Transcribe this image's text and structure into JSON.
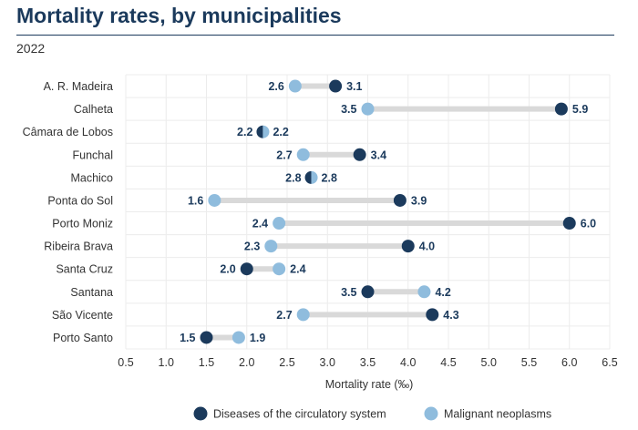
{
  "header": {
    "title": "Mortality rates, by municipalities",
    "subtitle": "2022"
  },
  "chart_data": {
    "type": "dumbbell",
    "title": "Mortality rates, by municipalities",
    "subtitle": "2022",
    "xlabel": "Mortality rate (‰)",
    "ylabel": "",
    "xlim": [
      0.5,
      6.5
    ],
    "xticks": [
      "0.5",
      "1.0",
      "1.5",
      "2.0",
      "2.5",
      "3.0",
      "3.5",
      "4.0",
      "4.5",
      "5.0",
      "5.5",
      "6.0",
      "6.5"
    ],
    "grid": true,
    "legend_position": "bottom",
    "categories": [
      "A. R. Madeira",
      "Calheta",
      "Câmara de Lobos",
      "Funchal",
      "Machico",
      "Ponta do Sol",
      "Porto Moniz",
      "Ribeira Brava",
      "Santa Cruz",
      "Santana",
      "São Vicente",
      "Porto Santo"
    ],
    "series": [
      {
        "name": "Diseases of the circulatory system",
        "color": "#1b3a5c",
        "values": [
          3.1,
          5.9,
          2.2,
          3.4,
          2.8,
          3.9,
          6.0,
          4.0,
          2.0,
          3.5,
          4.3,
          1.5
        ],
        "labels": [
          "3.1",
          "5.9",
          "2.2",
          "3.4",
          "2.8",
          "3.9",
          "6.0",
          "4.0",
          "2.0",
          "3.5",
          "4.3",
          "1.5"
        ]
      },
      {
        "name": "Malignant neoplasms",
        "color": "#8fbcdd",
        "values": [
          2.6,
          3.5,
          2.2,
          2.7,
          2.8,
          1.6,
          2.4,
          2.3,
          2.4,
          4.2,
          2.7,
          1.9
        ],
        "labels": [
          "2.6",
          "3.5",
          "2.2",
          "2.7",
          "2.8",
          "1.6",
          "2.4",
          "2.3",
          "2.4",
          "4.2",
          "2.7",
          "1.9"
        ]
      }
    ],
    "connector_color": "#d9d9d9"
  }
}
